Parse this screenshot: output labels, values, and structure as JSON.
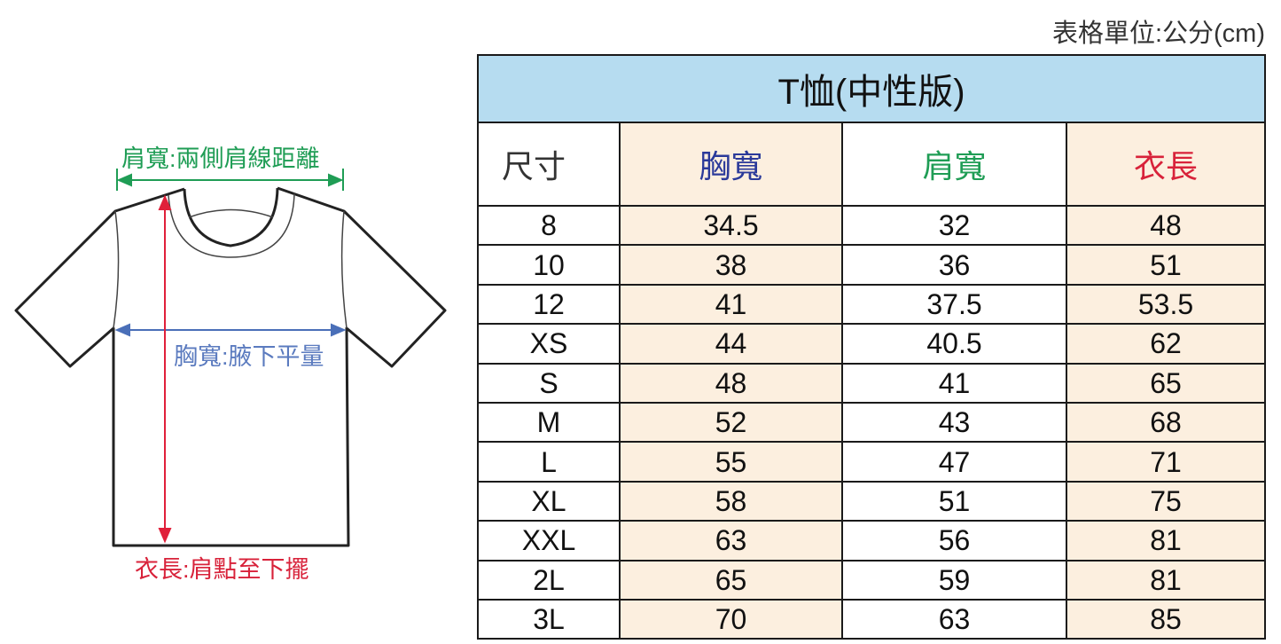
{
  "unit_note": "表格單位:公分(cm)",
  "diagram": {
    "shoulder_label": "肩寬:兩側肩線距離",
    "chest_label": "胸寬:腋下平量",
    "length_label": "衣長:肩點至下擺",
    "colors": {
      "shoulder": "#1f9d55",
      "chest": "#4a6fb8",
      "length": "#e0203a"
    }
  },
  "table": {
    "title": "T恤(中性版)",
    "headers": [
      "尺寸",
      "胸寬",
      "肩寬",
      "衣長"
    ],
    "header_colors": [
      "#333333",
      "#2b3a9a",
      "#1f9d55",
      "#d8223a"
    ],
    "rows": [
      [
        "8",
        "34.5",
        "32",
        "48"
      ],
      [
        "10",
        "38",
        "36",
        "51"
      ],
      [
        "12",
        "41",
        "37.5",
        "53.5"
      ],
      [
        "XS",
        "44",
        "40.5",
        "62"
      ],
      [
        "S",
        "48",
        "41",
        "65"
      ],
      [
        "M",
        "52",
        "43",
        "68"
      ],
      [
        "L",
        "55",
        "47",
        "71"
      ],
      [
        "XL",
        "58",
        "51",
        "75"
      ],
      [
        "XXL",
        "63",
        "56",
        "81"
      ],
      [
        "2L",
        "65",
        "59",
        "81"
      ],
      [
        "3L",
        "70",
        "63",
        "85"
      ]
    ]
  }
}
